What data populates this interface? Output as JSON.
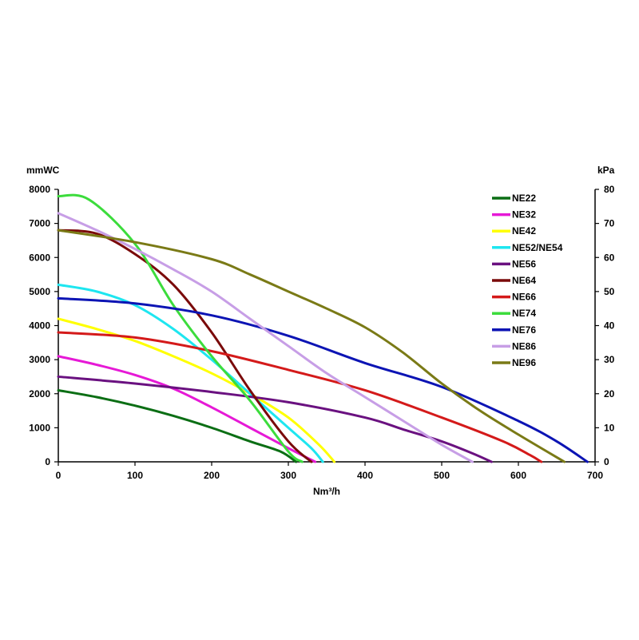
{
  "chart_data": {
    "type": "line",
    "title": "",
    "xlabel": "Nm³/h",
    "ylabel_left": "mmWC",
    "ylabel_right": "kPa",
    "xlim": [
      0,
      700
    ],
    "ylim_left": [
      0,
      8000
    ],
    "ylim_right": [
      0,
      80
    ],
    "x_ticks": [
      "0",
      "100",
      "200",
      "300",
      "400",
      "500",
      "600",
      "700"
    ],
    "y_ticks_left": [
      "0",
      "1000",
      "2000",
      "3000",
      "4000",
      "5000",
      "6000",
      "7000",
      "8000"
    ],
    "y_ticks_right": [
      "0",
      "10",
      "20",
      "30",
      "40",
      "50",
      "60",
      "70",
      "80"
    ],
    "grid": false,
    "legend_position": "top-right",
    "series": [
      {
        "name": "NE22",
        "color": "#0b6e14",
        "x": [
          0,
          50,
          100,
          150,
          200,
          250,
          290,
          310
        ],
        "y": [
          2100,
          1900,
          1650,
          1350,
          1000,
          600,
          300,
          0
        ]
      },
      {
        "name": "NE32",
        "color": "#e619d6",
        "x": [
          0,
          50,
          100,
          150,
          200,
          250,
          300,
          335
        ],
        "y": [
          3100,
          2850,
          2550,
          2150,
          1600,
          1000,
          400,
          0
        ]
      },
      {
        "name": "NE42",
        "color": "#ffff00",
        "x": [
          0,
          50,
          100,
          150,
          200,
          250,
          300,
          340,
          360
        ],
        "y": [
          4200,
          3900,
          3550,
          3100,
          2600,
          2000,
          1300,
          500,
          0
        ]
      },
      {
        "name": "NE52/NE54",
        "color": "#1ee6f0",
        "x": [
          0,
          50,
          100,
          150,
          200,
          250,
          300,
          330,
          345
        ],
        "y": [
          5200,
          5000,
          4600,
          3900,
          3000,
          2000,
          1000,
          400,
          0
        ]
      },
      {
        "name": "NE56",
        "color": "#6a1180",
        "x": [
          0,
          100,
          200,
          300,
          400,
          450,
          500,
          540,
          565
        ],
        "y": [
          2500,
          2300,
          2050,
          1750,
          1300,
          950,
          600,
          250,
          0
        ]
      },
      {
        "name": "NE64",
        "color": "#7a0a0a",
        "x": [
          0,
          50,
          100,
          150,
          200,
          250,
          300,
          330
        ],
        "y": [
          6800,
          6700,
          6100,
          5200,
          3800,
          2100,
          600,
          0
        ]
      },
      {
        "name": "NE66",
        "color": "#d41a1a",
        "x": [
          0,
          100,
          200,
          300,
          400,
          500,
          580,
          615,
          630
        ],
        "y": [
          3800,
          3650,
          3250,
          2700,
          2100,
          1300,
          600,
          200,
          0
        ]
      },
      {
        "name": "NE74",
        "color": "#3cdc3c",
        "x": [
          0,
          40,
          100,
          150,
          200,
          250,
          300,
          318
        ],
        "y": [
          7800,
          7700,
          6400,
          4600,
          3100,
          1800,
          300,
          0
        ]
      },
      {
        "name": "NE76",
        "color": "#0c14b4",
        "x": [
          0,
          100,
          200,
          300,
          400,
          500,
          600,
          650,
          690
        ],
        "y": [
          4800,
          4650,
          4300,
          3700,
          2900,
          2200,
          1200,
          600,
          0
        ]
      },
      {
        "name": "NE86",
        "color": "#c79ee6",
        "x": [
          0,
          50,
          100,
          150,
          200,
          250,
          300,
          350,
          400,
          450,
          500,
          540
        ],
        "y": [
          7300,
          6800,
          6250,
          5650,
          5000,
          4200,
          3400,
          2600,
          1900,
          1200,
          500,
          0
        ]
      },
      {
        "name": "NE96",
        "color": "#7a7a16",
        "x": [
          0,
          100,
          200,
          250,
          300,
          350,
          400,
          450,
          500,
          550,
          600,
          660
        ],
        "y": [
          6800,
          6450,
          5950,
          5500,
          5000,
          4500,
          3950,
          3200,
          2300,
          1500,
          800,
          0
        ]
      }
    ]
  }
}
